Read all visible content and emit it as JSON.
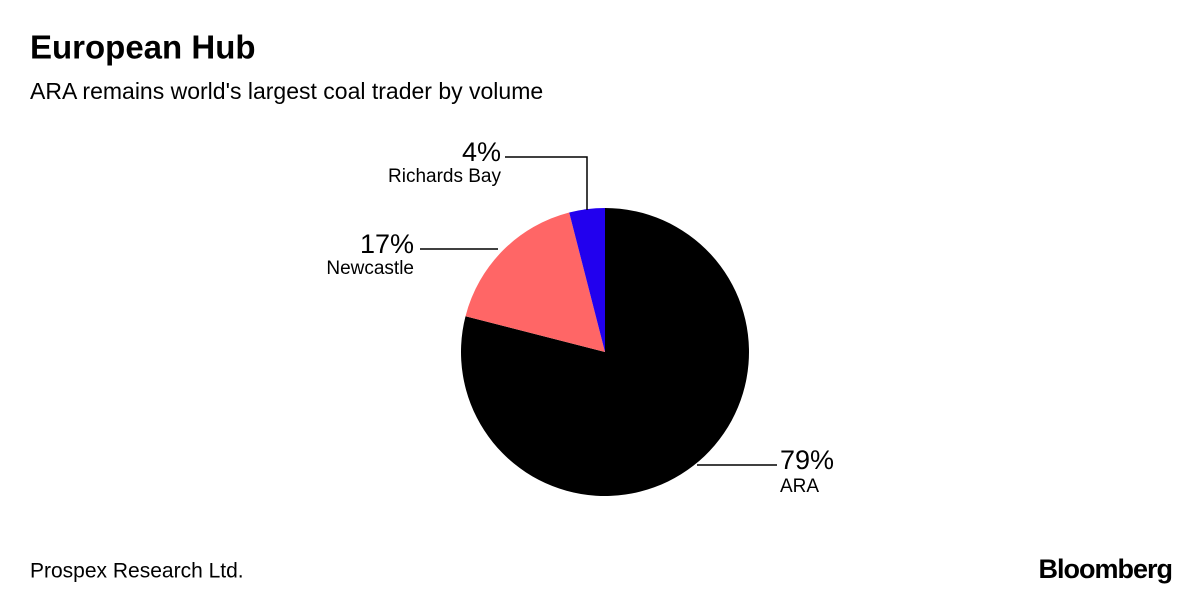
{
  "chart_data": {
    "type": "pie",
    "title": "European Hub",
    "subtitle": "ARA remains world's largest coal trader by volume",
    "categories": [
      "ARA",
      "Newcastle",
      "Richards Bay"
    ],
    "values": [
      79,
      17,
      4
    ],
    "value_labels": [
      "79%",
      "17%",
      "4%"
    ],
    "colors": [
      "#000000",
      "#ff6666",
      "#2200ee"
    ],
    "source": "Prospex Research Ltd.",
    "brand": "Bloomberg"
  }
}
